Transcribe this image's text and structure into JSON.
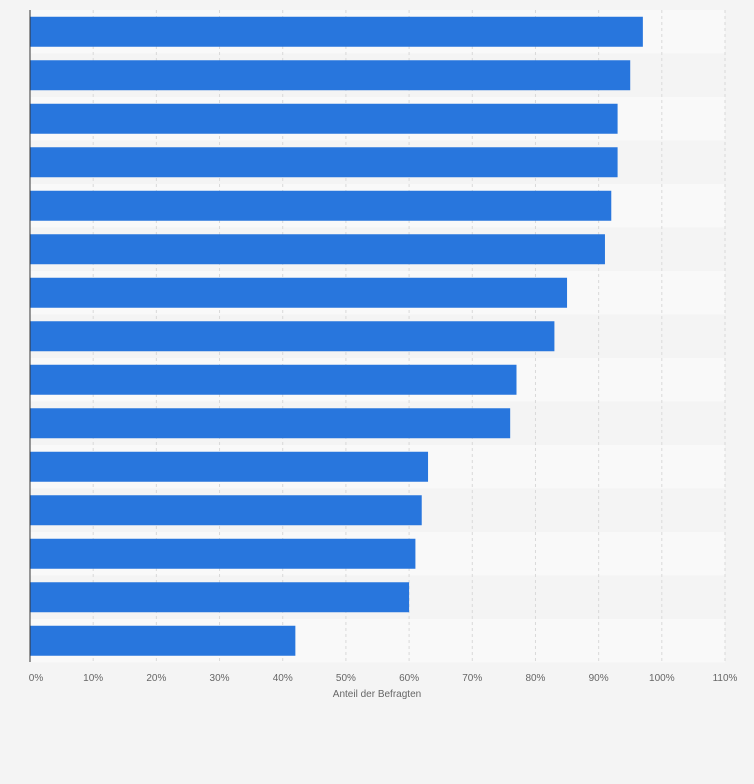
{
  "chart_data": {
    "type": "bar",
    "orientation": "horizontal",
    "categories": [
      "",
      "",
      "",
      "",
      "",
      "",
      "",
      "",
      "",
      "",
      "",
      "",
      "",
      "",
      ""
    ],
    "values": [
      97,
      95,
      93,
      93,
      92,
      91,
      85,
      83,
      77,
      76,
      63,
      62,
      61,
      60,
      42
    ],
    "title": "",
    "xlabel": "Anteil der Befragten",
    "ylabel": "",
    "xlim": [
      0,
      110
    ],
    "xticks": [
      0,
      10,
      20,
      30,
      40,
      50,
      60,
      70,
      80,
      90,
      100,
      110
    ],
    "xtick_labels": [
      "0%",
      "10%",
      "20%",
      "30%",
      "40%",
      "50%",
      "60%",
      "70%",
      "80%",
      "90%",
      "100%",
      "110%"
    ],
    "grid": true,
    "legend": "none"
  },
  "colors": {
    "bar": "#2876dd",
    "background": "#f4f4f4",
    "band_light": "#f9f9f9",
    "band_dark": "#f4f4f4",
    "grid": "#d9d9d9",
    "axis": "#333333",
    "tick_text": "#666666"
  }
}
